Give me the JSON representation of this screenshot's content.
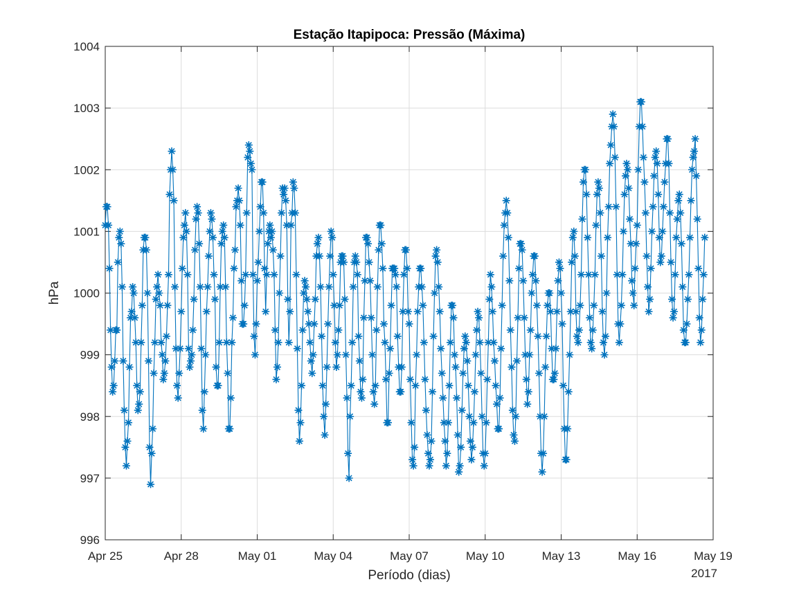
{
  "chart_data": {
    "type": "line",
    "title": "Estação Itapipoca: Pressão (Máxima)",
    "xlabel": "Período (dias)",
    "ylabel": "hPa",
    "x_secondary_label": "2017",
    "x_range_days": [
      0,
      24
    ],
    "ylim": [
      996,
      1004
    ],
    "y_ticks": [
      996,
      997,
      998,
      999,
      1000,
      1001,
      1002,
      1003,
      1004
    ],
    "y_tick_labels": [
      "996",
      "997",
      "998",
      "999",
      "1000",
      "1001",
      "1002",
      "1003",
      "1004"
    ],
    "x_tick_days": [
      0,
      3,
      6,
      9,
      12,
      15,
      18,
      21,
      24
    ],
    "x_tick_labels": [
      "Apr 25",
      "Apr 28",
      "May 01",
      "May 04",
      "May 07",
      "May 10",
      "May 13",
      "May 16",
      "May 19"
    ],
    "x_start_date": "2017-04-25",
    "sample_interval_hours": 1,
    "grid": true,
    "box": true,
    "marker": "asterisk",
    "series": [
      {
        "color": "#0072bd",
        "values": [
          1001.1,
          1001.4,
          1001.4,
          1001.1,
          1000.4,
          999.4,
          998.8,
          998.4,
          998.5,
          998.9,
          999.4,
          999.4,
          1000.5,
          1000.9,
          1001,
          1000.8,
          1000.1,
          998.9,
          998.1,
          997.5,
          997.2,
          997.6,
          997.9,
          998.8,
          999.6,
          999.7,
          1000.1,
          1000,
          999.6,
          999.2,
          998.5,
          998.1,
          998.2,
          998.4,
          999.2,
          999.8,
          1000.7,
          1000.9,
          1000.9,
          1000.7,
          1000,
          998.9,
          997.5,
          996.9,
          997.4,
          997.8,
          998.7,
          999.2,
          999.9,
          1000.1,
          1000.3,
          1000,
          999.8,
          999.2,
          999,
          998.6,
          998.7,
          998.9,
          999.3,
          999.8,
          1000.3,
          1001.6,
          1002,
          1002.3,
          1002,
          1001.5,
          1000.1,
          999.1,
          998.5,
          998.3,
          998.7,
          999.1,
          999.7,
          1000.4,
          1000.9,
          1001.1,
          1001.3,
          1001,
          1000.3,
          999.1,
          998.8,
          998.9,
          999,
          999.4,
          999.9,
          1000.7,
          1001.2,
          1001.4,
          1001.3,
          1000.8,
          1000.1,
          999.1,
          998.1,
          997.8,
          998.4,
          999,
          999.7,
          1000.1,
          1000.6,
          1001,
          1001.3,
          1001.2,
          1000.9,
          1000.3,
          999.9,
          998.8,
          998.5,
          998.5,
          999.2,
          1000.1,
          1000.8,
          1001,
          1001.1,
          1000.9,
          1000.1,
          999.2,
          998.7,
          997.8,
          997.8,
          998.3,
          999.2,
          999.6,
          1000.4,
          1000.7,
          1001.4,
          1001.5,
          1001.7,
          1001.5,
          1001.1,
          1000.2,
          999.5,
          999.5,
          999.8,
          1000.3,
          1001.3,
          1002.2,
          1002.4,
          1002.3,
          1002.1,
          1002,
          1000.3,
          999.3,
          999,
          999.5,
          1000.2,
          1000.5,
          1001,
          1001.4,
          1001.8,
          1001.8,
          1001.3,
          1000.4,
          999.7,
          1000.3,
          1000.8,
          1001,
          1001.1,
          1000.9,
          1001,
          1000.7,
          1000.3,
          999.4,
          998.6,
          998.8,
          999.2,
          1000,
          1000.6,
          1001.3,
          1001.7,
          1001.6,
          1001.7,
          1001.5,
          1001.1,
          999.9,
          999.2,
          999.7,
          1001.1,
          1001.3,
          1001.8,
          1001.7,
          1001.3,
          1000.3,
          999.1,
          998.1,
          997.6,
          997.9,
          998.5,
          999.4,
          1000,
          1000.2,
          1000.1,
          999.9,
          999.7,
          999.5,
          999.2,
          998.9,
          998.7,
          999,
          999.5,
          999.9,
          1000.6,
          1000.8,
          1000.9,
          1000.6,
          1000.1,
          999.3,
          998.5,
          998,
          997.7,
          998.2,
          998.8,
          999.5,
          1000.1,
          1000.6,
          1001,
          1000.9,
          1000.3,
          999.8,
          999.2,
          998.8,
          999,
          999.4,
          999.8,
          1000.5,
          1000.6,
          1000.6,
          1000.5,
          999.9,
          999,
          998.3,
          997.4,
          997,
          998,
          998.5,
          999.2,
          1000.1,
          1000.5,
          1000.6,
          1000.5,
          1000.3,
          999.3,
          998.9,
          998.4,
          998.3,
          998.6,
          999.6,
          1000.2,
          1000.9,
          1000.9,
          1000.8,
          1000.5,
          1000.2,
          999.6,
          999,
          998.4,
          998.2,
          998.5,
          999.4,
          1000.1,
          1000.7,
          1001.1,
          1001.1,
          1000.8,
          1000.4,
          999.5,
          999.2,
          998.6,
          997.9,
          997.9,
          998.7,
          999.1,
          999.8,
          1000.4,
          1000.4,
          1000.4,
          1000.3,
          1000.1,
          999.3,
          998.8,
          998.4,
          998.4,
          998.8,
          999.7,
          1000.3,
          1000.7,
          1000.7,
          1000.4,
          999.7,
          999.5,
          998.6,
          997.9,
          997.3,
          997.2,
          997.5,
          998.5,
          999,
          999.7,
          1000.1,
          1000.4,
          1000.4,
          1000.1,
          999.8,
          999.2,
          998.6,
          998.1,
          997.7,
          997.4,
          997.2,
          997.3,
          997.6,
          998.4,
          999.3,
          1000,
          1000.6,
          1000.7,
          1000.5,
          1000.1,
          999.7,
          999.1,
          998.7,
          998.3,
          997.9,
          997.6,
          997.2,
          997.4,
          997.9,
          998.5,
          999.2,
          999.8,
          999.8,
          999.6,
          999,
          998.8,
          998.3,
          997.7,
          997.1,
          997.2,
          997.5,
          998.1,
          998.7,
          999.1,
          999.3,
          999.2,
          998.9,
          998.5,
          998,
          997.6,
          997.3,
          997.5,
          997.9,
          998.4,
          999,
          999.4,
          999.7,
          999.6,
          999.2,
          998.7,
          998,
          997.4,
          997.2,
          997.4,
          997.9,
          998.6,
          999.2,
          999.9,
          1000.3,
          1000.1,
          999.7,
          999.2,
          998.9,
          998.5,
          998.2,
          997.8,
          997.8,
          998.3,
          999.1,
          999.8,
          1000.6,
          1001.1,
          1001.3,
          1001.5,
          1001.3,
          1000.9,
          1000.2,
          999.4,
          998.8,
          998.1,
          997.7,
          997.6,
          998,
          998.9,
          999.6,
          1000.4,
          1000.8,
          1000.8,
          1000.7,
          1000.2,
          999.6,
          999,
          998.6,
          998.2,
          998.4,
          999,
          999.4,
          1000,
          1000.3,
          1000.6,
          1000.6,
          1000.2,
          999.8,
          999.3,
          998.7,
          998,
          997.4,
          997.1,
          997.4,
          998,
          998.8,
          999.3,
          999.8,
          1000,
          1000,
          999.7,
          999.1,
          998.6,
          998.6,
          998.7,
          999.1,
          999.7,
          1000.2,
          1000.5,
          1000.4,
          1000,
          999.5,
          998.5,
          997.8,
          997.3,
          997.3,
          997.8,
          998.4,
          999,
          999.7,
          1000.5,
          1000.9,
          1001,
          1000.6,
          999.7,
          999.3,
          999.2,
          999.4,
          999.8,
          1000.3,
          1001.2,
          1001.8,
          1002,
          1002,
          1001.6,
          1000.9,
          1000.3,
          999.6,
          999.2,
          999.1,
          999.4,
          999.8,
          1000.3,
          1001.1,
          1001.6,
          1001.8,
          1001.7,
          1001.3,
          1000.6,
          999.7,
          999.2,
          999,
          999.3,
          1000,
          1000.9,
          1001.4,
          1002.1,
          1002.4,
          1002.7,
          1002.9,
          1002.7,
          1002.2,
          1001.4,
          1000.3,
          999.5,
          999.2,
          999.5,
          999.8,
          1000.3,
          1001,
          1001.6,
          1001.9,
          1002.1,
          1002,
          1001.7,
          1001.2,
          1000.8,
          1000.2,
          1000,
          999.8,
          1000.4,
          1000.8,
          1001.1,
          1002,
          1002.7,
          1003.1,
          1003.1,
          1002.7,
          1002.2,
          1001.8,
          1001.3,
          1000.6,
          1000.1,
          999.7,
          999.9,
          1000.4,
          1001,
          1001.4,
          1001.9,
          1002.2,
          1002.3,
          1002.1,
          1001.6,
          1000.9,
          1000.5,
          1000.6,
          1001,
          1001.4,
          1001.8,
          1002.1,
          1002.5,
          1002.5,
          1002.1,
          1001.3,
          1000.5,
          999.9,
          999.6,
          999.7,
          1000.3,
          1000.9,
          1001.2,
          1001.5,
          1001.6,
          1001.3,
          1000.8,
          1000.1,
          999.4,
          999.2,
          999.2,
          999.5,
          999.9,
          1000.3,
          1000.9,
          1001.5,
          1002,
          1002.2,
          1002.3,
          1002.5,
          1001.9,
          1001.2,
          1000.4,
          999.6,
          999.2,
          999.4,
          999.9,
          1000.3,
          1000.9
        ]
      }
    ]
  }
}
